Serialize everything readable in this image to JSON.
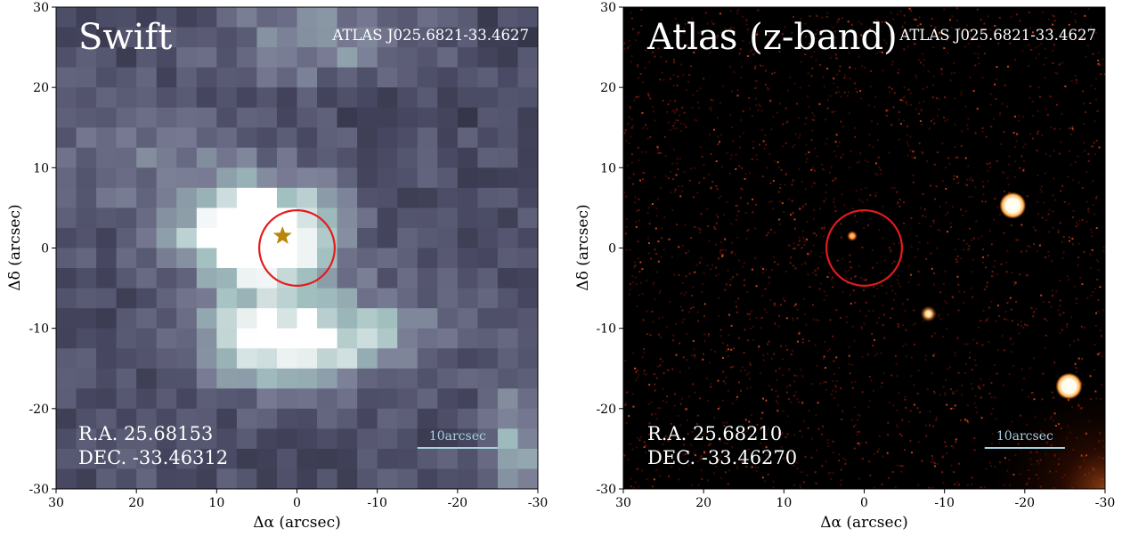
{
  "panels": [
    {
      "id": "swift",
      "title": "Swift",
      "object": "ATLAS J025.6821-33.4627",
      "ra_text": "R.A. 25.68153",
      "dec_text": "DEC. -33.46312",
      "scalebar_label": "10arcsec",
      "xlabel": "Δα (arcsec)",
      "ylabel": "Δδ (arcsec)",
      "xticks": [
        "30",
        "20",
        "10",
        "0",
        "-10",
        "-20",
        "-30"
      ],
      "yticks": [
        "30",
        "20",
        "10",
        "0",
        "-10",
        "-20",
        "-30"
      ],
      "xlim": [
        30,
        -30
      ],
      "ylim": [
        -30,
        30
      ],
      "aperture_radius_arcsec": 4.7,
      "source_marker": {
        "x": 1.8,
        "y": 1.5
      },
      "scalebar_arcsec": [
        -15,
        -25
      ],
      "colors": {
        "circle": "#e41a1c",
        "star": "#b8860b",
        "scalebar": "#a6cfe0"
      }
    },
    {
      "id": "atlas",
      "title": "Atlas (z-band)",
      "object": "ATLAS J025.6821-33.4627",
      "ra_text": "R.A. 25.68210",
      "dec_text": "DEC. -33.46270",
      "scalebar_label": "10arcsec",
      "xlabel": "Δα (arcsec)",
      "ylabel": "Δδ (arcsec)",
      "xticks": [
        "30",
        "20",
        "10",
        "0",
        "-10",
        "-20",
        "-30"
      ],
      "yticks": [
        "30",
        "20",
        "10",
        "0",
        "-10",
        "-20",
        "-30"
      ],
      "xlim": [
        30,
        -30
      ],
      "ylim": [
        -30,
        30
      ],
      "aperture_radius_arcsec": 4.7,
      "sources": [
        {
          "x": 1.5,
          "y": 1.5,
          "size": "faint"
        },
        {
          "x": -8.0,
          "y": -8.2,
          "size": "medium"
        },
        {
          "x": -18.5,
          "y": 5.3,
          "size": "bright"
        },
        {
          "x": -25.5,
          "y": -17.2,
          "size": "bright"
        }
      ],
      "scalebar_arcsec": [
        -15,
        -25
      ],
      "colors": {
        "circle": "#e41a1c",
        "scalebar": "#a6cfe0"
      }
    }
  ]
}
